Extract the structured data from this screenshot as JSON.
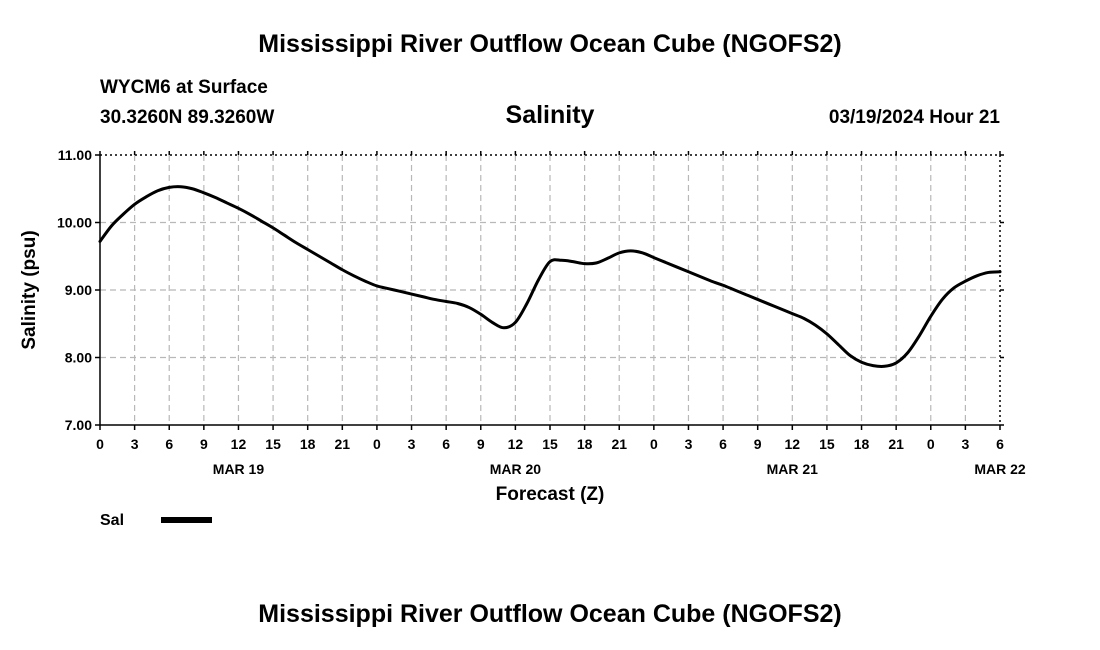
{
  "header": {
    "title": "Mississippi River Outflow Ocean Cube (NGOFS2)",
    "station": "WYCM6 at Surface",
    "coords": "30.3260N  89.3260W",
    "variable": "Salinity",
    "datetime": "03/19/2024 Hour 21"
  },
  "footer": {
    "title": "Mississippi River Outflow Ocean Cube (NGOFS2)"
  },
  "chart_data": {
    "type": "line",
    "title": "Salinity",
    "xlabel": "Forecast (Z)",
    "ylabel": "Salinity (psu)",
    "xlim": [
      0,
      78
    ],
    "ylim": [
      7.0,
      11.0
    ],
    "grid": true,
    "y_ticks": [
      {
        "value": 7,
        "label": "7.00"
      },
      {
        "value": 8,
        "label": "8.00"
      },
      {
        "value": 9,
        "label": "9.00"
      },
      {
        "value": 10,
        "label": "10.00"
      },
      {
        "value": 11,
        "label": "11.00"
      }
    ],
    "x_ticks": [
      {
        "value": 0,
        "label": "0"
      },
      {
        "value": 3,
        "label": "3"
      },
      {
        "value": 6,
        "label": "6"
      },
      {
        "value": 9,
        "label": "9"
      },
      {
        "value": 12,
        "label": "12"
      },
      {
        "value": 15,
        "label": "15"
      },
      {
        "value": 18,
        "label": "18"
      },
      {
        "value": 21,
        "label": "21"
      },
      {
        "value": 24,
        "label": "0"
      },
      {
        "value": 27,
        "label": "3"
      },
      {
        "value": 30,
        "label": "6"
      },
      {
        "value": 33,
        "label": "9"
      },
      {
        "value": 36,
        "label": "12"
      },
      {
        "value": 39,
        "label": "15"
      },
      {
        "value": 42,
        "label": "18"
      },
      {
        "value": 45,
        "label": "21"
      },
      {
        "value": 48,
        "label": "0"
      },
      {
        "value": 51,
        "label": "3"
      },
      {
        "value": 54,
        "label": "6"
      },
      {
        "value": 57,
        "label": "9"
      },
      {
        "value": 60,
        "label": "12"
      },
      {
        "value": 63,
        "label": "15"
      },
      {
        "value": 66,
        "label": "18"
      },
      {
        "value": 69,
        "label": "21"
      },
      {
        "value": 72,
        "label": "0"
      },
      {
        "value": 75,
        "label": "3"
      },
      {
        "value": 78,
        "label": "6"
      }
    ],
    "date_labels": [
      {
        "value": 12,
        "label": "MAR 19"
      },
      {
        "value": 36,
        "label": "MAR 20"
      },
      {
        "value": 60,
        "label": "MAR 21"
      },
      {
        "value": 78,
        "label": "MAR 22"
      }
    ],
    "series": [
      {
        "name": "Sal",
        "x": [
          0,
          1,
          2,
          3,
          4,
          5,
          6,
          7,
          8,
          9,
          10,
          11,
          12,
          13,
          14,
          15,
          16,
          17,
          18,
          19,
          20,
          21,
          22,
          23,
          24,
          25,
          26,
          27,
          28,
          29,
          30,
          31,
          32,
          33,
          34,
          35,
          36,
          37,
          38,
          39,
          40,
          41,
          42,
          43,
          44,
          45,
          46,
          47,
          48,
          49,
          50,
          51,
          52,
          53,
          54,
          55,
          56,
          57,
          58,
          59,
          60,
          61,
          62,
          63,
          64,
          65,
          66,
          67,
          68,
          69,
          70,
          71,
          72,
          73,
          74,
          75,
          76,
          77,
          78
        ],
        "values": [
          9.72,
          9.95,
          10.12,
          10.27,
          10.38,
          10.47,
          10.52,
          10.53,
          10.5,
          10.44,
          10.37,
          10.29,
          10.21,
          10.12,
          10.02,
          9.92,
          9.81,
          9.7,
          9.6,
          9.5,
          9.4,
          9.3,
          9.21,
          9.13,
          9.06,
          9.02,
          8.98,
          8.94,
          8.9,
          8.86,
          8.83,
          8.8,
          8.74,
          8.64,
          8.52,
          8.44,
          8.52,
          8.8,
          9.15,
          9.42,
          9.44,
          9.42,
          9.39,
          9.4,
          9.47,
          9.55,
          9.58,
          9.55,
          9.48,
          9.41,
          9.34,
          9.27,
          9.2,
          9.13,
          9.07,
          9.0,
          8.93,
          8.86,
          8.79,
          8.72,
          8.65,
          8.58,
          8.48,
          8.35,
          8.19,
          8.03,
          7.93,
          7.88,
          7.87,
          7.92,
          8.07,
          8.32,
          8.61,
          8.86,
          9.03,
          9.13,
          9.21,
          9.26,
          9.27
        ],
        "color": "#000000"
      }
    ],
    "legend": {
      "position": "bottom-left",
      "label": "Sal"
    }
  }
}
